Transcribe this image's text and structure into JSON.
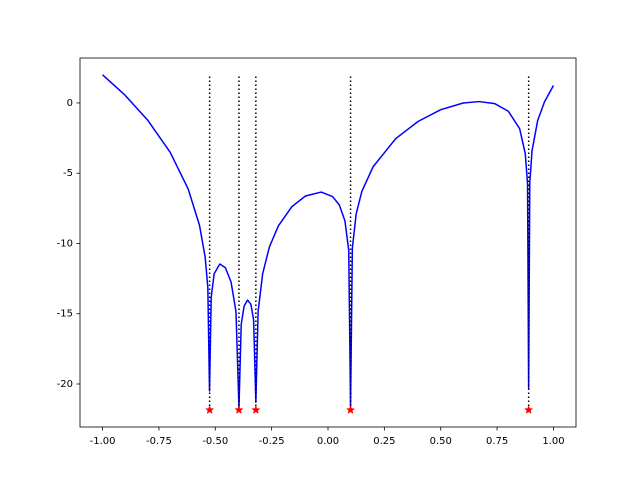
{
  "chart_data": {
    "type": "line",
    "x": [
      -1.0,
      -0.9,
      -0.8,
      -0.7,
      -0.62,
      -0.57,
      -0.545,
      -0.533,
      -0.5255,
      -0.518,
      -0.505,
      -0.48,
      -0.455,
      -0.43,
      -0.408,
      -0.395,
      -0.385,
      -0.372,
      -0.357,
      -0.342,
      -0.33,
      -0.32,
      -0.31,
      -0.29,
      -0.26,
      -0.22,
      -0.16,
      -0.1,
      -0.03,
      0.02,
      0.05,
      0.075,
      0.092,
      0.1,
      0.108,
      0.125,
      0.15,
      0.2,
      0.3,
      0.4,
      0.5,
      0.6,
      0.67,
      0.74,
      0.8,
      0.85,
      0.875,
      0.885,
      0.89,
      0.895,
      0.905,
      0.93,
      0.96,
      1.0
    ],
    "values": [
      2.0,
      0.55,
      -1.22,
      -3.51,
      -6.13,
      -8.7,
      -10.96,
      -13.12,
      -20.5,
      -13.83,
      -12.15,
      -11.46,
      -11.73,
      -12.74,
      -14.87,
      -21.7,
      -15.77,
      -14.45,
      -14.03,
      -14.32,
      -15.44,
      -21.3,
      -14.83,
      -12.17,
      -10.25,
      -8.74,
      -7.37,
      -6.62,
      -6.34,
      -6.66,
      -7.25,
      -8.38,
      -10.49,
      -21.6,
      -10.33,
      -7.9,
      -6.3,
      -4.54,
      -2.54,
      -1.31,
      -0.48,
      0.0,
      0.1,
      -0.05,
      -0.59,
      -1.83,
      -3.61,
      -5.74,
      -20.3,
      -5.67,
      -3.4,
      -1.25,
      0.07,
      1.24
    ],
    "color": "#0000ff",
    "roots": [
      -0.525,
      -0.395,
      -0.32,
      0.1,
      0.89
    ],
    "root_y": -21.85,
    "root_color": "#ff0000",
    "vline_ymin": -21.85,
    "vline_ymax": 2.0,
    "vline_color": "#000000",
    "xlim": [
      -1.1,
      1.1
    ],
    "ylim": [
      -23.06,
      3.2
    ],
    "xticks": [
      {
        "value": -1.0,
        "label": "-1.00"
      },
      {
        "value": -0.75,
        "label": "-0.75"
      },
      {
        "value": -0.5,
        "label": "-0.50"
      },
      {
        "value": -0.25,
        "label": "-0.25"
      },
      {
        "value": 0.0,
        "label": "0.00"
      },
      {
        "value": 0.25,
        "label": "0.25"
      },
      {
        "value": 0.5,
        "label": "0.50"
      },
      {
        "value": 0.75,
        "label": "0.75"
      },
      {
        "value": 1.0,
        "label": "1.00"
      }
    ],
    "yticks": [
      0,
      -5,
      -10,
      -15,
      -20
    ]
  }
}
